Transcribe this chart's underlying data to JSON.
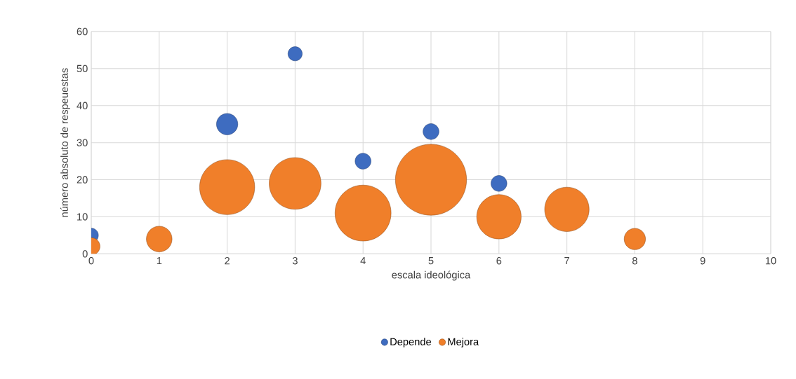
{
  "chart_data": {
    "type": "bubble",
    "xlabel": "escala ideológica",
    "ylabel": "número absoluto de respeuestas",
    "x": [
      0,
      1,
      2,
      3,
      4,
      5,
      6,
      7,
      8
    ],
    "series": [
      {
        "name": "Depende",
        "color": "#3e6cc0",
        "values": [
          5,
          null,
          35,
          54,
          25,
          33,
          19,
          null,
          null
        ],
        "sizes": [
          0.04,
          null,
          0.09,
          0.04,
          0.05,
          0.05,
          0.05,
          null,
          null
        ]
      },
      {
        "name": "Mejora",
        "color": "#f07f2a",
        "values": [
          2,
          4,
          18,
          19,
          11,
          20,
          10,
          12,
          4
        ],
        "sizes": [
          0.06,
          0.13,
          0.6,
          0.53,
          0.62,
          1,
          0.39,
          0.39,
          0.09
        ]
      }
    ],
    "xlim": [
      0,
      10
    ],
    "ylim": [
      0,
      60
    ],
    "xticks": [
      0,
      1,
      2,
      3,
      4,
      5,
      6,
      7,
      8,
      9,
      10
    ],
    "yticks": [
      0,
      10,
      20,
      30,
      40,
      50,
      60
    ],
    "grid": true,
    "legend": "bottom"
  }
}
